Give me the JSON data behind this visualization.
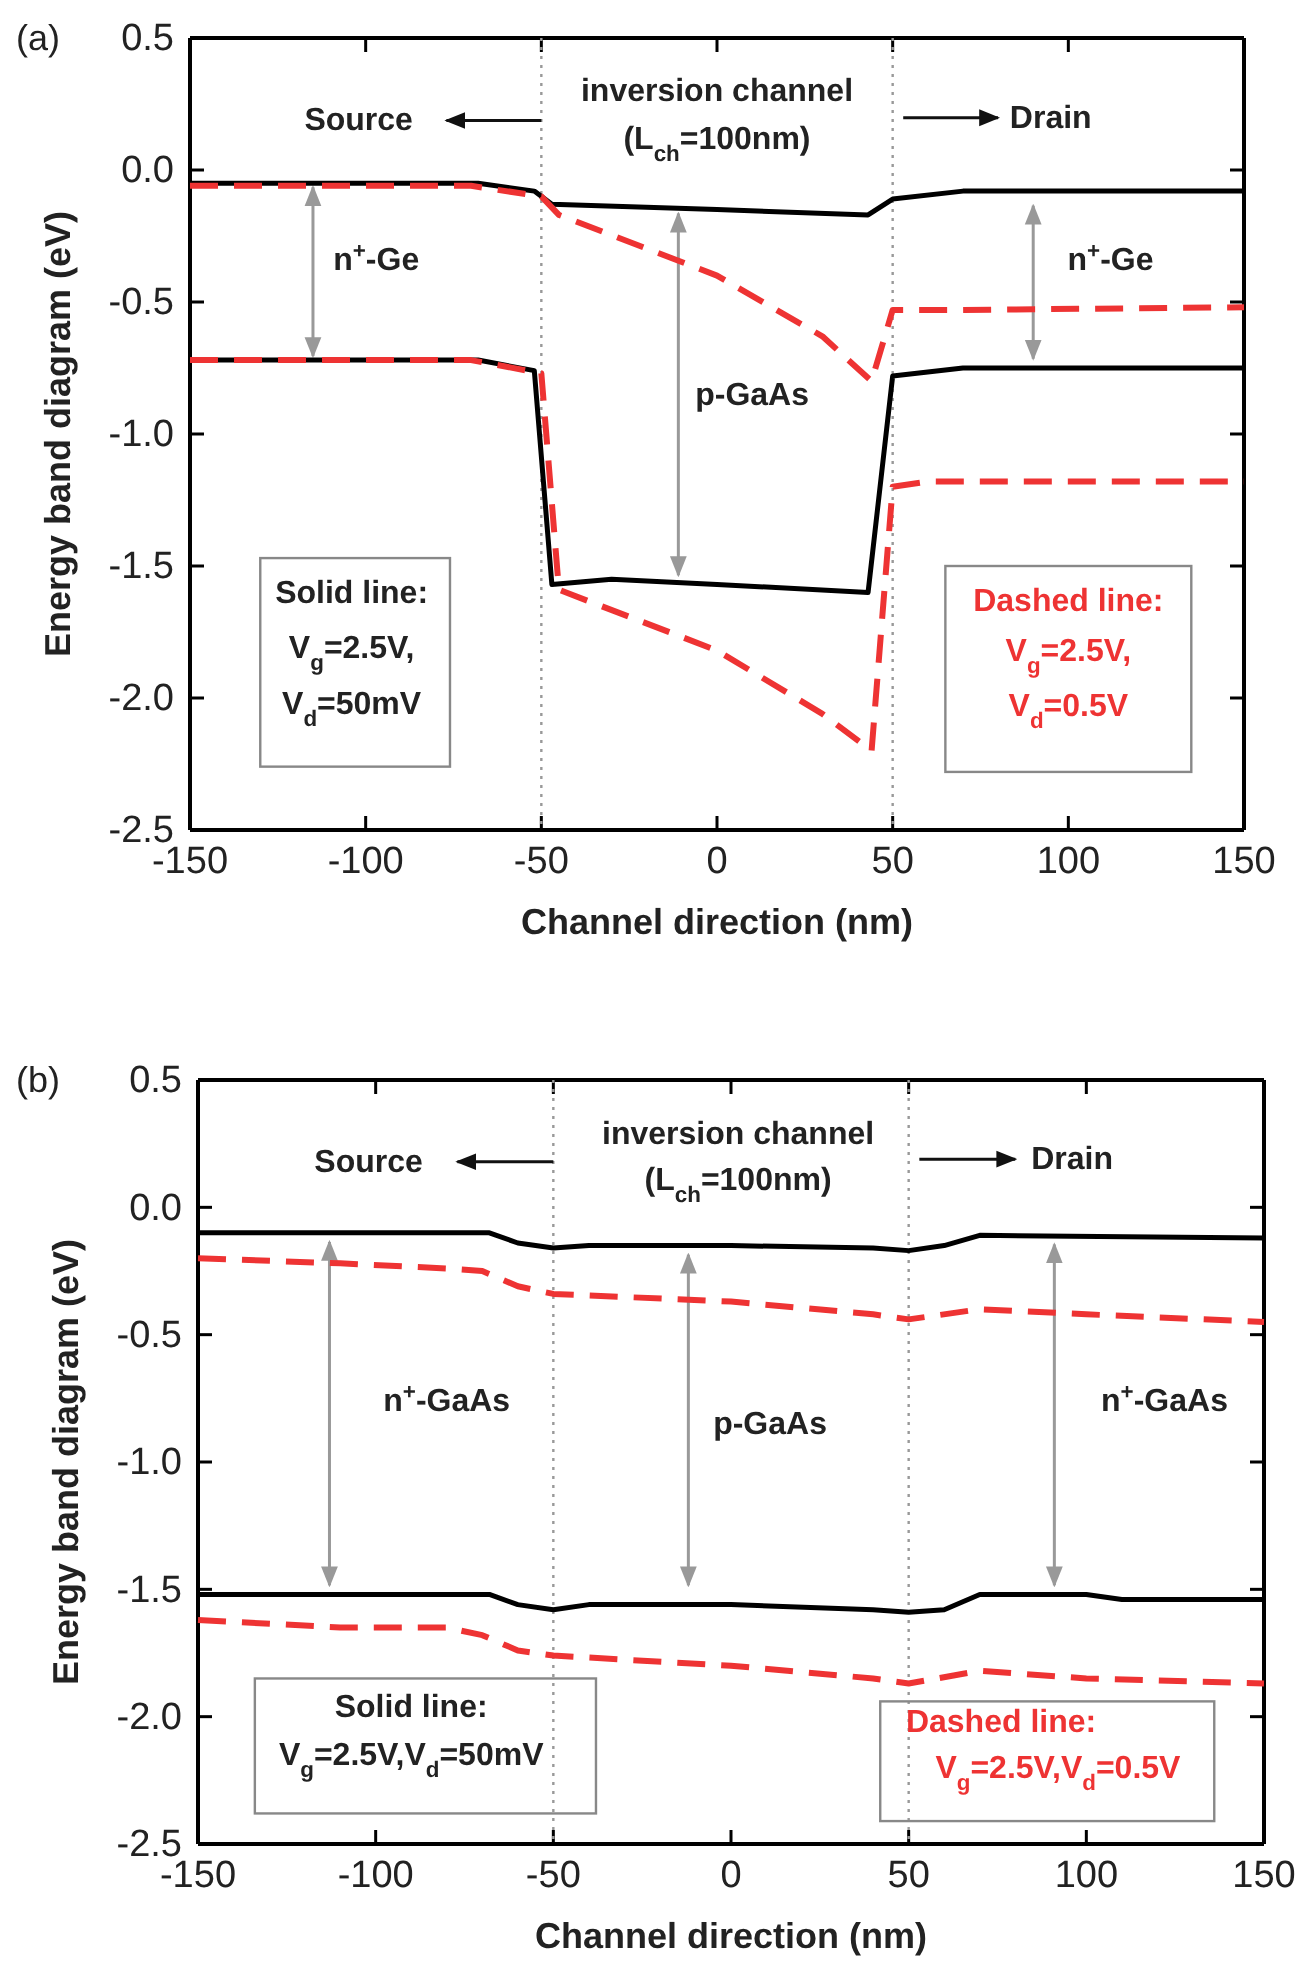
{
  "chart_data": [
    {
      "type": "line",
      "title": "(a)",
      "xlabel": "Channel direction (nm)",
      "ylabel": "Energy band diagram (eV)",
      "xlim": [
        -150,
        150
      ],
      "ylim": [
        -2.5,
        0.5
      ],
      "xticks": [
        -150,
        -100,
        -50,
        0,
        50,
        100,
        150
      ],
      "yticks": [
        {
          "value": -2.5,
          "label": "-2.5"
        },
        {
          "value": -2,
          "label": "-2.0"
        },
        {
          "value": -1.5,
          "label": "-1.5"
        },
        {
          "value": -1,
          "label": "-1.0"
        },
        {
          "value": -0.5,
          "label": "-0.5"
        },
        {
          "value": 0,
          "label": "0.0"
        },
        {
          "value": 0.5,
          "label": "0.5"
        }
      ],
      "series": [
        {
          "color": "#000000",
          "line_style": "solid",
          "x": [
            -150,
            -68,
            -52,
            -47,
            0,
            43,
            50,
            70,
            150
          ],
          "values": [
            -0.05,
            -0.05,
            -0.08,
            -0.13,
            -0.15,
            -0.17,
            -0.11,
            -0.08,
            -0.08
          ]
        },
        {
          "color": "#000000",
          "line_style": "solid",
          "x": [
            -150,
            -68,
            -52,
            -47,
            -30,
            0,
            43,
            50,
            70,
            150
          ],
          "values": [
            -0.72,
            -0.72,
            -0.76,
            -1.57,
            -1.55,
            -1.57,
            -1.6,
            -0.78,
            -0.75,
            -0.75
          ]
        },
        {
          "color": "#ee3333",
          "line_style": "dashed",
          "x": [
            -150,
            -70,
            -50,
            -45,
            0,
            30,
            44,
            50,
            70,
            150
          ],
          "values": [
            -0.06,
            -0.06,
            -0.1,
            -0.17,
            -0.4,
            -0.63,
            -0.8,
            -0.53,
            -0.53,
            -0.52
          ]
        },
        {
          "color": "#ee3333",
          "line_style": "dashed",
          "x": [
            -150,
            -70,
            -50,
            -45,
            0,
            30,
            44,
            50,
            60,
            150
          ],
          "values": [
            -0.72,
            -0.72,
            -0.77,
            -1.59,
            -1.82,
            -2.06,
            -2.2,
            -1.2,
            -1.18,
            -1.18
          ]
        }
      ],
      "ref_lines": [
        {
          "axis": "x",
          "value": -50,
          "color": "#999999",
          "line_style": "dotted"
        },
        {
          "axis": "x",
          "value": 50,
          "color": "#999999",
          "line_style": "dotted"
        }
      ],
      "annotations": [
        "Source",
        "inversion channel",
        "(L$_{ch}$=100nm)",
        "Drain",
        "n$^{+}$-Ge",
        "n$^{+}$-Ge",
        "p-GaAs",
        "Solid line:",
        "V$_{g}$=2.5V,",
        "V$_{d}$=50mV",
        "Dashed line:",
        "V$_{g}$=2.5V,",
        "V$_{d}$=0.5V"
      ]
    },
    {
      "type": "line",
      "title": "(b)",
      "xlabel": "Channel direction (nm)",
      "ylabel": "Energy band diagram (eV)",
      "xlim": [
        -150,
        150
      ],
      "ylim": [
        -2.5,
        0.5
      ],
      "xticks": [
        -150,
        -100,
        -50,
        0,
        50,
        100,
        150
      ],
      "yticks": [
        {
          "value": -2.5,
          "label": "-2.5"
        },
        {
          "value": -2,
          "label": "-2.0"
        },
        {
          "value": -1.5,
          "label": "-1.5"
        },
        {
          "value": -1,
          "label": "-1.0"
        },
        {
          "value": -0.5,
          "label": "-0.5"
        },
        {
          "value": 0,
          "label": "0.0"
        },
        {
          "value": 0.5,
          "label": "0.5"
        }
      ],
      "series": [
        {
          "color": "#000000",
          "line_style": "solid",
          "x": [
            -150,
            -68,
            -60,
            -50,
            -40,
            0,
            40,
            50,
            60,
            70,
            150
          ],
          "values": [
            -0.1,
            -0.1,
            -0.14,
            -0.16,
            -0.15,
            -0.15,
            -0.16,
            -0.17,
            -0.15,
            -0.11,
            -0.12
          ]
        },
        {
          "color": "#000000",
          "line_style": "solid",
          "x": [
            -150,
            -68,
            -60,
            -50,
            -40,
            0,
            40,
            50,
            60,
            70,
            100,
            110,
            150
          ],
          "values": [
            -1.52,
            -1.52,
            -1.56,
            -1.58,
            -1.56,
            -1.56,
            -1.58,
            -1.59,
            -1.58,
            -1.52,
            -1.52,
            -1.54,
            -1.54
          ]
        },
        {
          "color": "#ee3333",
          "line_style": "dashed",
          "x": [
            -150,
            -110,
            -80,
            -70,
            -60,
            -50,
            0,
            40,
            50,
            70,
            100,
            150
          ],
          "values": [
            -0.2,
            -0.22,
            -0.24,
            -0.25,
            -0.31,
            -0.34,
            -0.37,
            -0.42,
            -0.44,
            -0.4,
            -0.42,
            -0.45
          ]
        },
        {
          "color": "#ee3333",
          "line_style": "dashed",
          "x": [
            -150,
            -110,
            -80,
            -70,
            -60,
            -50,
            0,
            40,
            50,
            70,
            100,
            150
          ],
          "values": [
            -1.62,
            -1.65,
            -1.65,
            -1.68,
            -1.74,
            -1.76,
            -1.8,
            -1.85,
            -1.87,
            -1.82,
            -1.85,
            -1.87
          ]
        }
      ],
      "ref_lines": [
        {
          "axis": "x",
          "value": -50,
          "color": "#999999",
          "line_style": "dotted"
        },
        {
          "axis": "x",
          "value": 50,
          "color": "#999999",
          "line_style": "dotted"
        }
      ],
      "annotations": [
        "Source",
        "inversion channel",
        "(L$_{ch}$=100nm)",
        "Drain",
        "n$^{+}$-GaAs",
        "n$^{+}$-GaAs",
        "p-GaAs",
        "Solid line:",
        "V$_{g}$=2.5V,V$_{d}$=50mV",
        "Dashed line:",
        "V$_{g}$=2.5V,V$_{d}$=0.5V"
      ]
    }
  ]
}
